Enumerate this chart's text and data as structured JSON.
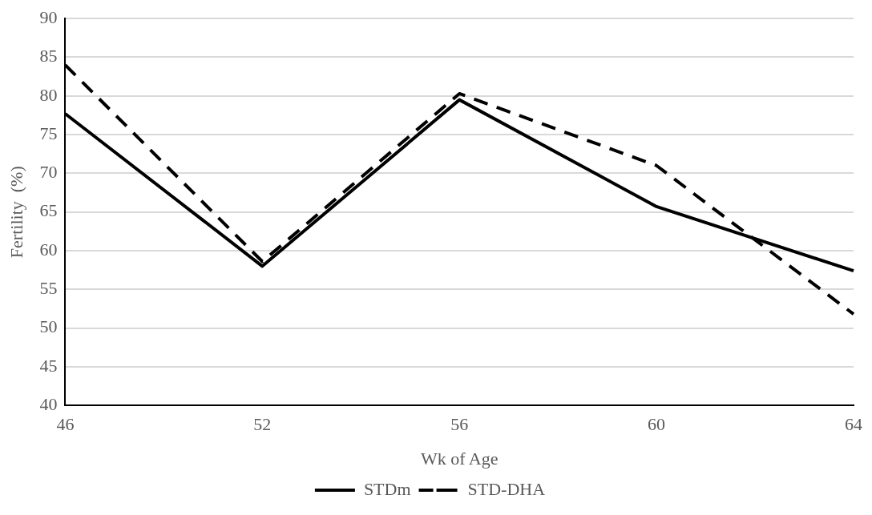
{
  "chart_data": {
    "type": "line",
    "xlabel": "Wk of Age",
    "ylabel": "Fertility  (%)",
    "categories": [
      "46",
      "52",
      "56",
      "60",
      "64"
    ],
    "series": [
      {
        "name": "STDm",
        "color": "#000000",
        "line_style": "solid",
        "values": [
          77.7,
          58.0,
          79.5,
          65.7,
          57.4
        ]
      },
      {
        "name": "STD-DHA",
        "color": "#000000",
        "line_style": "dashed",
        "values": [
          84.0,
          58.6,
          80.3,
          71.0,
          51.8
        ]
      }
    ],
    "ylim": [
      40,
      90
    ],
    "yticks": [
      40,
      45,
      50,
      55,
      60,
      65,
      70,
      75,
      80,
      85,
      90
    ],
    "grid": "y",
    "legend": "bottom",
    "marker": "none"
  }
}
